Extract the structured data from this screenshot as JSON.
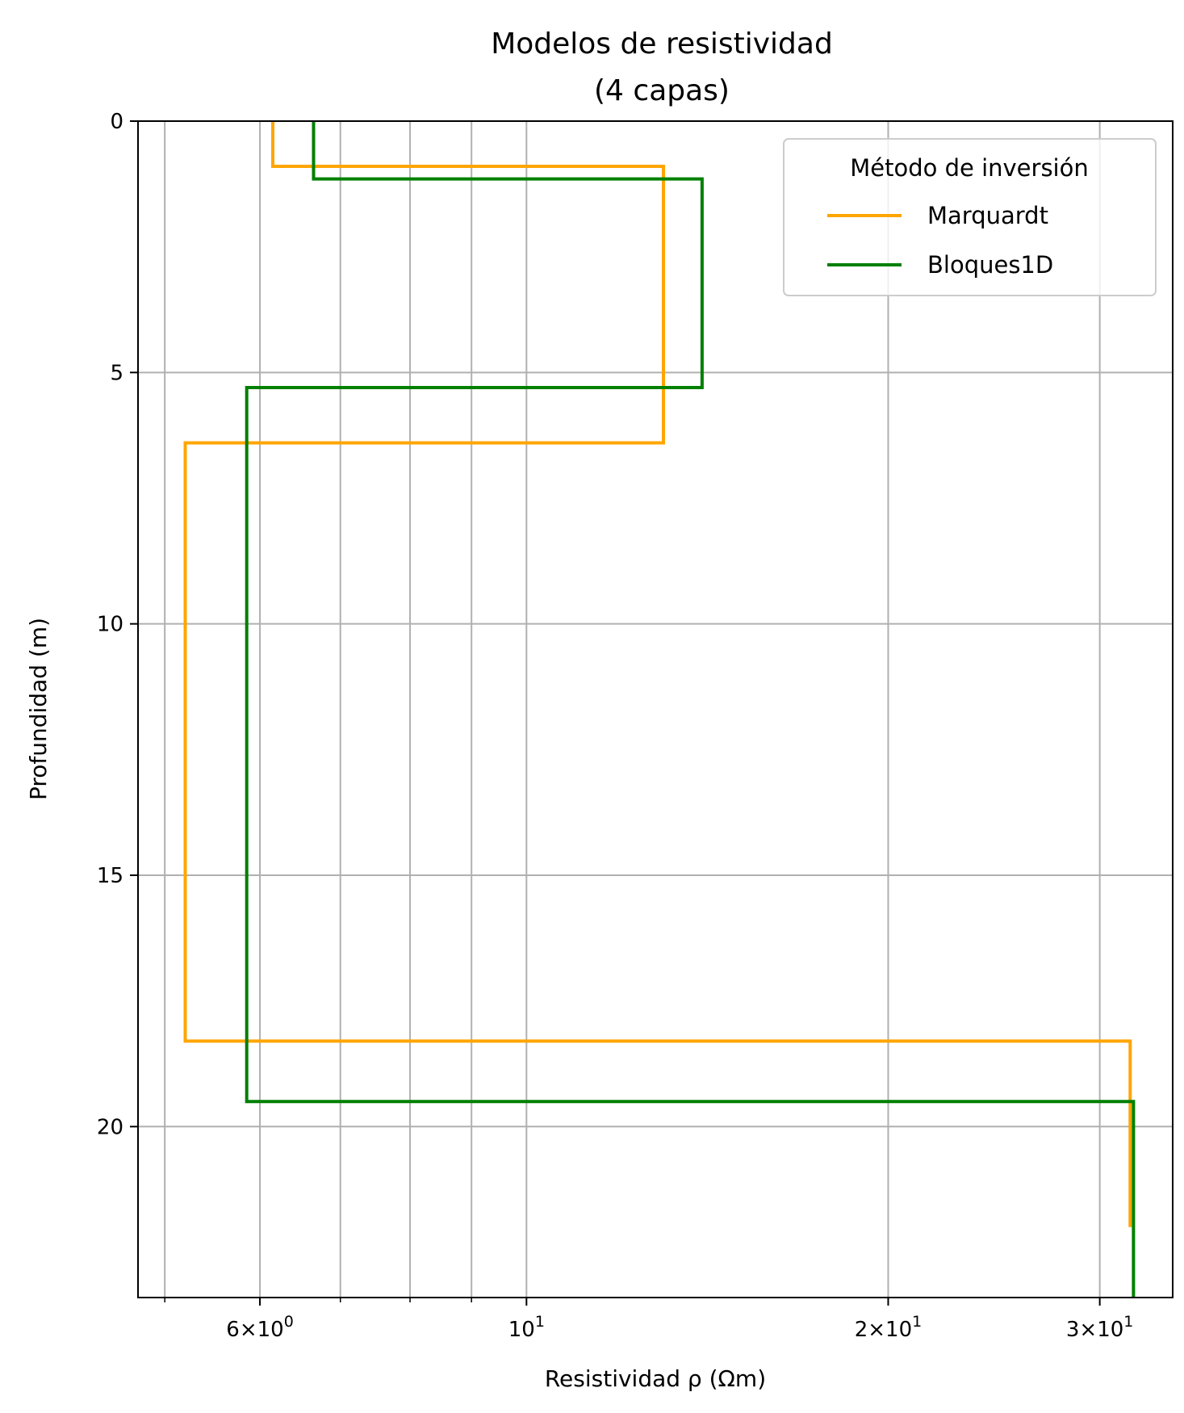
{
  "chart_data": {
    "type": "line",
    "title": [
      "Modelos de resistividad",
      "(4 capas)"
    ],
    "xlabel": "Resistividad ρ (Ωm)",
    "ylabel": "Profundidad (m)",
    "xscale": "log",
    "xlim": [
      4.75,
      34.5
    ],
    "ylim": [
      23.4,
      0
    ],
    "y_inverted": true,
    "grid": true,
    "xticks": [
      {
        "value": 6,
        "mantissa": "6",
        "exp": "0"
      },
      {
        "value": 10,
        "mantissa": "",
        "exp": "1"
      },
      {
        "value": 20,
        "mantissa": "2",
        "exp": "1"
      },
      {
        "value": 30,
        "mantissa": "3",
        "exp": "1"
      }
    ],
    "xticks_minor": [
      5,
      7,
      8,
      9
    ],
    "yticks": [
      0,
      5,
      10,
      15,
      20
    ],
    "legend": {
      "title": "Método de inversión",
      "placement": "top-right"
    },
    "series": [
      {
        "name": "Marquardt",
        "color": "#FFA500",
        "x": [
          6.15,
          6.15,
          13.0,
          13.0,
          5.2,
          5.2,
          31.8,
          31.8
        ],
        "y": [
          0,
          0.9,
          0.9,
          6.4,
          6.4,
          18.3,
          18.3,
          22.0
        ]
      },
      {
        "name": "Bloques1D",
        "color": "#008000",
        "x": [
          6.65,
          6.65,
          14.0,
          14.0,
          5.85,
          5.85,
          32.0,
          32.0
        ],
        "y": [
          0,
          1.15,
          1.15,
          5.3,
          5.3,
          19.5,
          19.5,
          23.4
        ]
      }
    ]
  }
}
